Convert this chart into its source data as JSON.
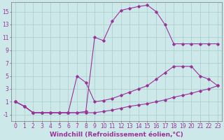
{
  "background_color": "#cce8e8",
  "line_color": "#993399",
  "grid_color": "#aacccc",
  "xlabel": "Windchill (Refroidissement éolien,°C)",
  "xlabel_fontsize": 6.5,
  "tick_fontsize": 5.5,
  "ylim": [
    -2.0,
    16.5
  ],
  "xlim": [
    -0.5,
    23.5
  ],
  "yticks": [
    -1,
    1,
    3,
    5,
    7,
    9,
    11,
    13,
    15
  ],
  "xticks": [
    0,
    1,
    2,
    3,
    4,
    5,
    6,
    7,
    8,
    9,
    10,
    11,
    12,
    13,
    14,
    15,
    16,
    17,
    18,
    19,
    20,
    21,
    22,
    23
  ],
  "line1_x": [
    0,
    1,
    2,
    3,
    4,
    5,
    6,
    7,
    8,
    9,
    10,
    11,
    12,
    13,
    14,
    15,
    16,
    17,
    18,
    19,
    20,
    21,
    22,
    23
  ],
  "line1_y": [
    1.0,
    0.3,
    -0.7,
    -0.7,
    -0.7,
    -0.7,
    -0.7,
    -0.7,
    -0.7,
    -0.7,
    -0.5,
    -0.3,
    0.0,
    0.3,
    0.5,
    0.7,
    1.0,
    1.3,
    1.7,
    2.0,
    2.3,
    2.7,
    3.0,
    3.5
  ],
  "line2_x": [
    0,
    1,
    2,
    3,
    4,
    5,
    6,
    7,
    8,
    9,
    10,
    11,
    12,
    13,
    14,
    15,
    16,
    17,
    18,
    19,
    20,
    21,
    22,
    23
  ],
  "line2_y": [
    1.0,
    0.3,
    -0.7,
    -0.7,
    -0.7,
    -0.7,
    -0.7,
    5.0,
    4.0,
    1.0,
    1.2,
    1.5,
    2.0,
    2.5,
    3.0,
    3.5,
    4.5,
    5.5,
    6.5,
    6.5,
    6.5,
    5.0,
    4.5,
    3.5
  ],
  "line3_x": [
    0,
    1,
    2,
    3,
    4,
    5,
    6,
    7,
    8,
    9,
    10,
    11,
    12,
    13,
    14,
    15,
    16,
    17,
    18,
    19,
    20,
    21,
    22,
    23
  ],
  "line3_y": [
    1.0,
    0.3,
    -0.7,
    -0.7,
    -0.7,
    -0.7,
    -0.7,
    -0.7,
    -0.5,
    11.0,
    10.5,
    13.5,
    15.2,
    15.5,
    15.8,
    16.0,
    15.0,
    13.0,
    10.0,
    10.0,
    10.0,
    10.0,
    10.0,
    10.0
  ]
}
